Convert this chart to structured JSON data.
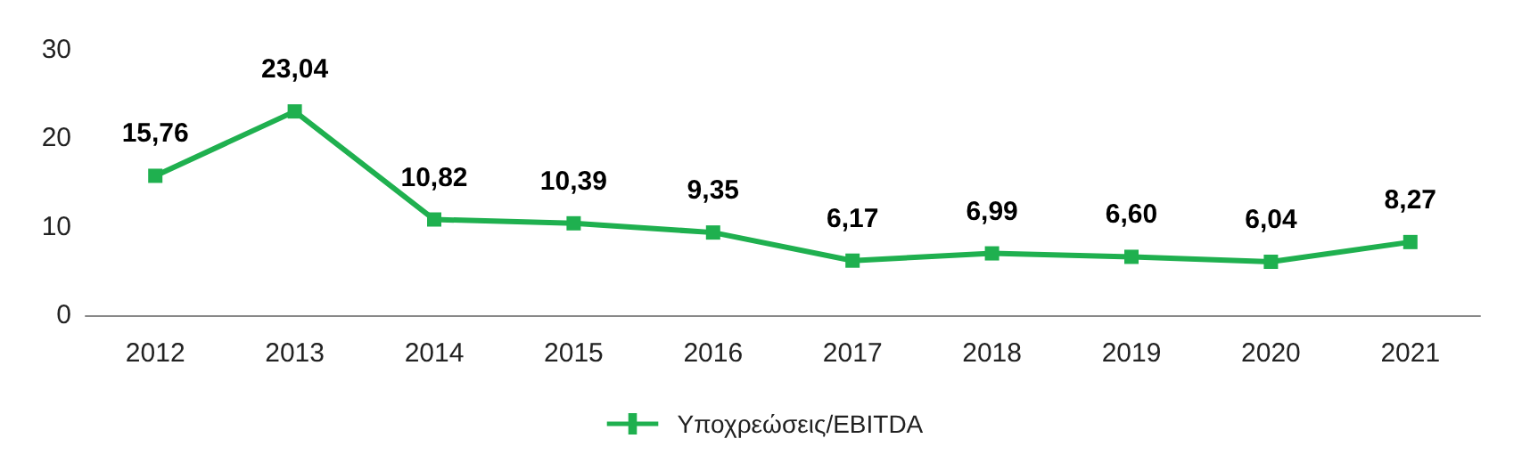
{
  "chart_data": {
    "type": "line",
    "categories": [
      "2012",
      "2013",
      "2014",
      "2015",
      "2016",
      "2017",
      "2018",
      "2019",
      "2020",
      "2021"
    ],
    "series": [
      {
        "name": "Υποχρεώσεις/EBITDA",
        "color": "#1fb04f",
        "values": [
          15.76,
          23.04,
          10.82,
          10.39,
          9.35,
          6.17,
          6.99,
          6.6,
          6.04,
          8.27
        ],
        "value_labels": [
          "15,76",
          "23,04",
          "10,82",
          "10,39",
          "9,35",
          "6,17",
          "6,99",
          "6,60",
          "6,04",
          "8,27"
        ]
      }
    ],
    "ylim": [
      0,
      30
    ],
    "yticks": [
      0,
      10,
      20,
      30
    ],
    "grid": false,
    "legend": "bottom",
    "marker": "square",
    "line_style": "solid"
  }
}
